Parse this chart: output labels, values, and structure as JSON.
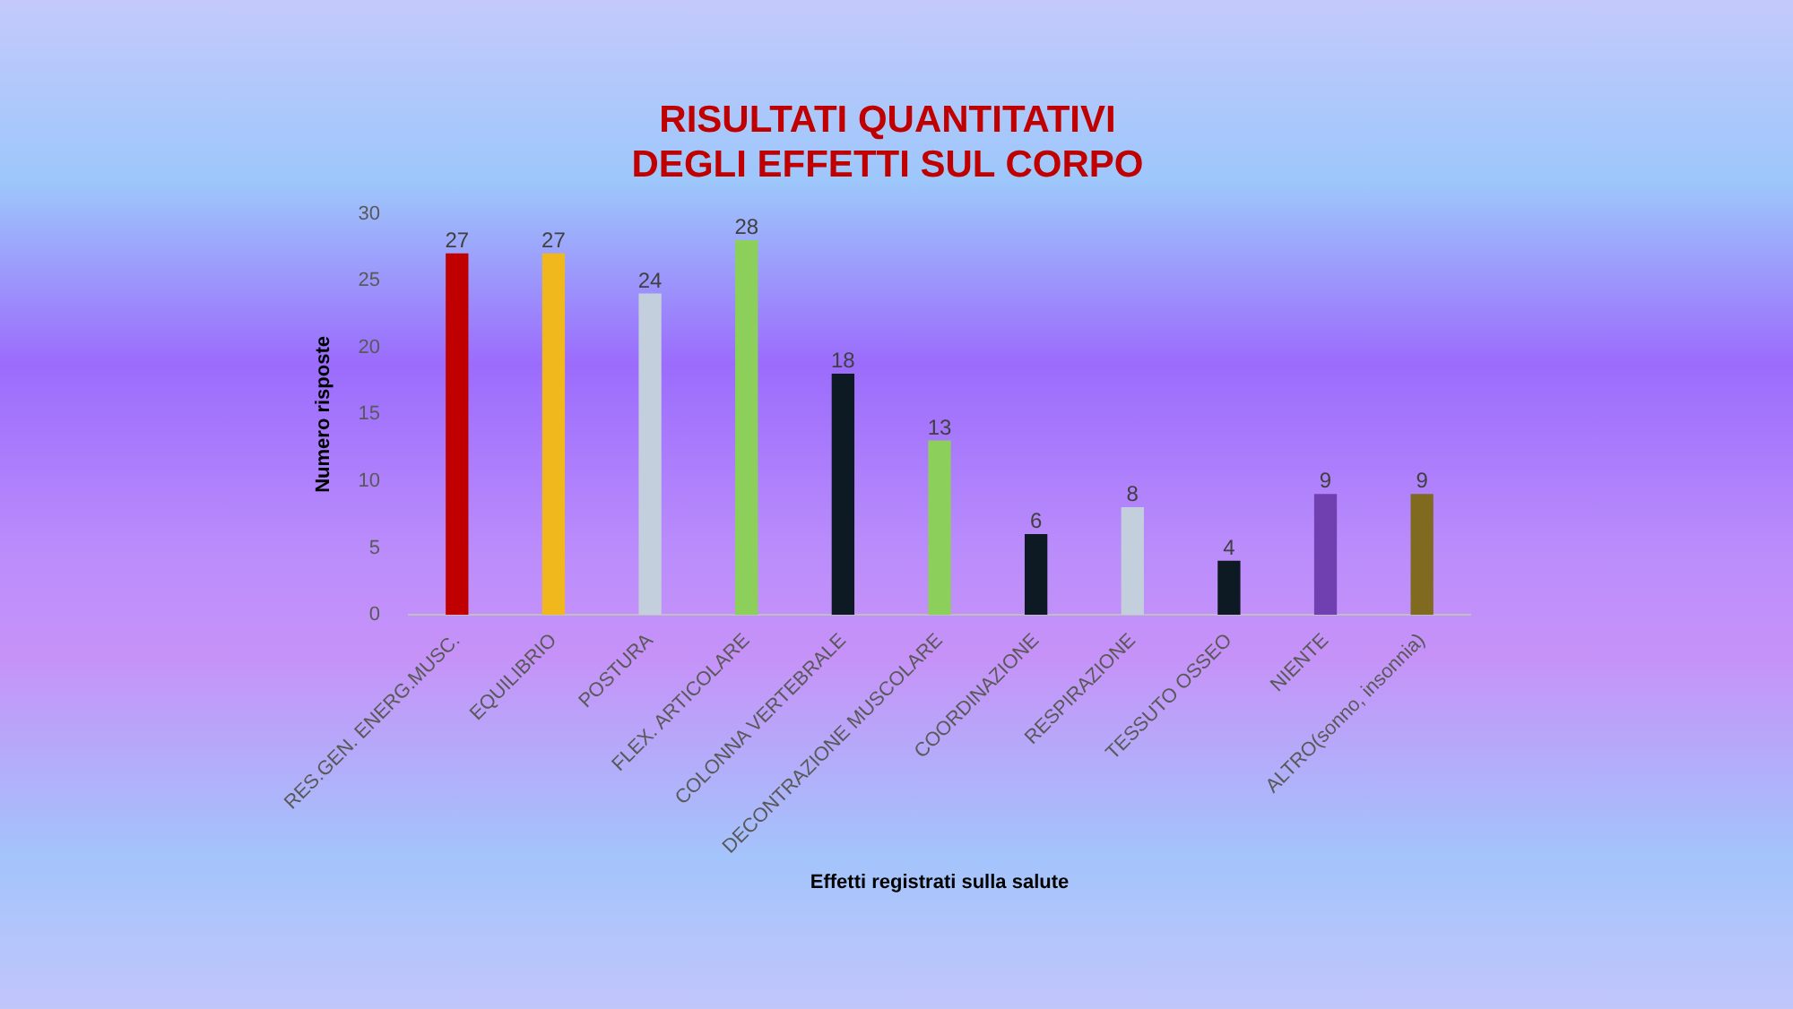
{
  "chart_data": {
    "type": "bar",
    "title": "RISULTATI QUANTITATIVI\nDEGLI EFFETTI SUL CORPO",
    "xlabel": "Effetti registrati sulla salute",
    "ylabel": "Numero risposte",
    "categories": [
      "RES.GEN. ENERG.MUSC.",
      "EQUILIBRIO",
      "POSTURA",
      "FLEX. ARTICOLARE",
      "COLONNA VERTEBRALE",
      "DECONTRAZIONE MUSCOLARE",
      "COORDINAZIONE",
      "RESPIRAZIONE",
      "TESSUTO OSSEO",
      "NIENTE",
      "ALTRO(sonno, insonnia)"
    ],
    "values": [
      27,
      27,
      24,
      28,
      18,
      13,
      6,
      8,
      4,
      9,
      9
    ],
    "colors": [
      "#c00000",
      "#f0b81c",
      "#c3cfdc",
      "#8ccf5a",
      "#0d1a24",
      "#8ccf5a",
      "#0d1a24",
      "#c3cfdc",
      "#0d1a24",
      "#7040b0",
      "#7f6a20"
    ],
    "ylim": [
      0,
      30
    ],
    "yticks": [
      0,
      5,
      10,
      15,
      20,
      25,
      30
    ],
    "data_labels": true
  }
}
